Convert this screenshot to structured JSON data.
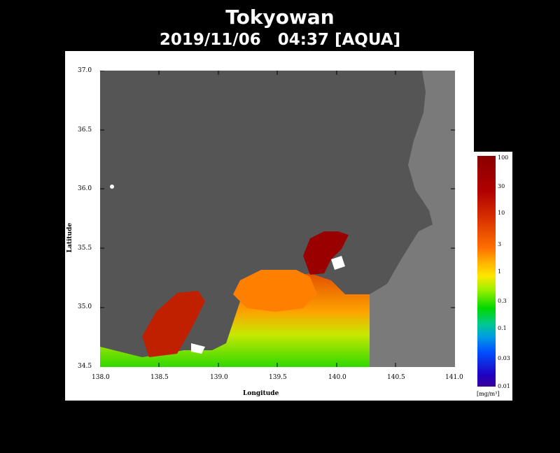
{
  "title": "Tokyowan",
  "subtitle": "2019/11/06   04:37 [AQUA]",
  "axes": {
    "xlabel": "Longitude",
    "ylabel": "Latitude",
    "xticks": [
      "138.0",
      "138.5",
      "139.0",
      "139.5",
      "140.0",
      "140.5",
      "141.0"
    ],
    "yticks": [
      "37.0",
      "36.5",
      "36.0",
      "35.5",
      "35.0",
      "34.5"
    ],
    "xlim": [
      138.0,
      141.0
    ],
    "ylim": [
      34.5,
      37.0
    ]
  },
  "colorbar": {
    "labels": [
      "100",
      "30",
      "10",
      "3",
      "1",
      "0.3",
      "0.1",
      "0.03",
      "0.01"
    ],
    "unit": "[mg/m³]",
    "scale": "log"
  },
  "colors": {
    "background": "#000000",
    "land": "#555555",
    "sea_no_data": "#7a7a7a",
    "cloud": "#ffffff"
  }
}
